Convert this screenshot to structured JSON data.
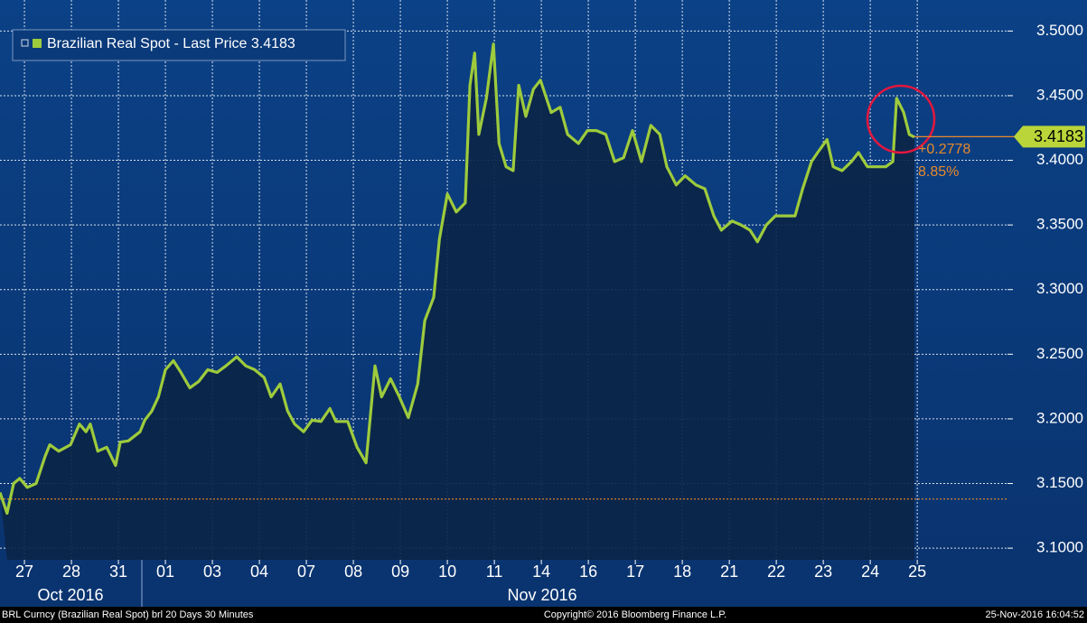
{
  "chart_data": {
    "type": "line",
    "series": [
      {
        "name": "Brazilian Real Spot - Last Price",
        "color": "#9ecb3c",
        "x": [
          -0.52,
          -0.37,
          -0.23,
          -0.1,
          0.06,
          0.25,
          0.44,
          0.54,
          0.73,
          0.98,
          1.17,
          1.31,
          1.4,
          1.56,
          1.75,
          1.94,
          2.04,
          2.21,
          2.46,
          2.56,
          2.71,
          2.85,
          3.0,
          3.17,
          3.33,
          3.52,
          3.71,
          3.9,
          4.1,
          4.29,
          4.52,
          4.71,
          4.9,
          5.1,
          5.25,
          5.44,
          5.6,
          5.75,
          5.94,
          6.12,
          6.31,
          6.5,
          6.63,
          6.88,
          7.08,
          7.27,
          7.46,
          7.6,
          7.79,
          7.98,
          8.17,
          8.37,
          8.52,
          8.71,
          8.83,
          9.0,
          9.19,
          9.38,
          9.48,
          9.58,
          9.67,
          9.83,
          9.98,
          10.1,
          10.25,
          10.4,
          10.52,
          10.67,
          10.83,
          10.98,
          11.21,
          11.4,
          11.56,
          11.79,
          11.98,
          12.17,
          12.37,
          12.56,
          12.75,
          12.94,
          13.13,
          13.33,
          13.52,
          13.67,
          13.87,
          14.06,
          14.29,
          14.48,
          14.67,
          14.83,
          15.06,
          15.25,
          15.44,
          15.6,
          15.79,
          15.98,
          16.21,
          16.4,
          16.56,
          16.75,
          16.88,
          17.08,
          17.21,
          17.4,
          17.6,
          17.75,
          17.94,
          18.13,
          18.33,
          18.48,
          18.56,
          18.71,
          18.83,
          18.94
        ],
        "values": [
          3.143,
          3.127,
          3.15,
          3.154,
          3.147,
          3.15,
          3.171,
          3.18,
          3.175,
          3.18,
          3.196,
          3.19,
          3.196,
          3.175,
          3.178,
          3.164,
          3.182,
          3.183,
          3.19,
          3.199,
          3.206,
          3.217,
          3.238,
          3.245,
          3.236,
          3.224,
          3.229,
          3.238,
          3.236,
          3.241,
          3.248,
          3.241,
          3.238,
          3.232,
          3.217,
          3.227,
          3.206,
          3.196,
          3.19,
          3.199,
          3.198,
          3.208,
          3.198,
          3.198,
          3.178,
          3.166,
          3.241,
          3.217,
          3.231,
          3.217,
          3.201,
          3.227,
          3.276,
          3.294,
          3.339,
          3.374,
          3.36,
          3.367,
          3.458,
          3.483,
          3.42,
          3.448,
          3.49,
          3.413,
          3.395,
          3.392,
          3.458,
          3.434,
          3.455,
          3.462,
          3.437,
          3.441,
          3.42,
          3.413,
          3.423,
          3.423,
          3.42,
          3.399,
          3.402,
          3.423,
          3.399,
          3.427,
          3.42,
          3.395,
          3.381,
          3.388,
          3.381,
          3.378,
          3.357,
          3.346,
          3.353,
          3.35,
          3.346,
          3.337,
          3.35,
          3.357,
          3.357,
          3.357,
          3.378,
          3.399,
          3.406,
          3.416,
          3.395,
          3.392,
          3.399,
          3.406,
          3.395,
          3.395,
          3.395,
          3.399,
          3.448,
          3.437,
          3.42,
          3.418
        ]
      }
    ],
    "last_price": 3.4183,
    "change": "+0.2778",
    "change_pct": "8.85%",
    "reference_value": 3.138,
    "xlim": [
      -0.52,
      20.92
    ],
    "xticks": [
      {
        "value": 0,
        "label": "27"
      },
      {
        "value": 1,
        "label": "28"
      },
      {
        "value": 2,
        "label": "31"
      },
      {
        "value": 3,
        "label": "01"
      },
      {
        "value": 4,
        "label": "03"
      },
      {
        "value": 5,
        "label": "04"
      },
      {
        "value": 6,
        "label": "07"
      },
      {
        "value": 7,
        "label": "08"
      },
      {
        "value": 8,
        "label": "09"
      },
      {
        "value": 9,
        "label": "10"
      },
      {
        "value": 10,
        "label": "11"
      },
      {
        "value": 11,
        "label": "14"
      },
      {
        "value": 12,
        "label": "16"
      },
      {
        "value": 13,
        "label": "17"
      },
      {
        "value": 14,
        "label": "18"
      },
      {
        "value": 15,
        "label": "21"
      },
      {
        "value": 16,
        "label": "22"
      },
      {
        "value": 17,
        "label": "23"
      },
      {
        "value": 18,
        "label": "24"
      },
      {
        "value": 19,
        "label": "25"
      }
    ],
    "x_groups": [
      "Oct 2016",
      "Nov 2016"
    ],
    "ylim": [
      3.091,
      3.524
    ],
    "yticks": [
      {
        "value": 3.1,
        "label": "3.1000"
      },
      {
        "value": 3.15,
        "label": "3.1500"
      },
      {
        "value": 3.2,
        "label": "3.2000"
      },
      {
        "value": 3.25,
        "label": "3.2500"
      },
      {
        "value": 3.3,
        "label": "3.3000"
      },
      {
        "value": 3.35,
        "label": "3.3500"
      },
      {
        "value": 3.4,
        "label": "3.4000"
      },
      {
        "value": 3.45,
        "label": "3.4500"
      },
      {
        "value": 3.5,
        "label": "3.5000"
      }
    ],
    "grid": true,
    "footer": {
      "left": "BRL Curncy (Brazilian Real Spot) brl 20 Days 30 Minutes",
      "center": "Copyright© 2016 Bloomberg Finance L.P.",
      "right": "25-Nov-2016 16:04:52"
    }
  }
}
